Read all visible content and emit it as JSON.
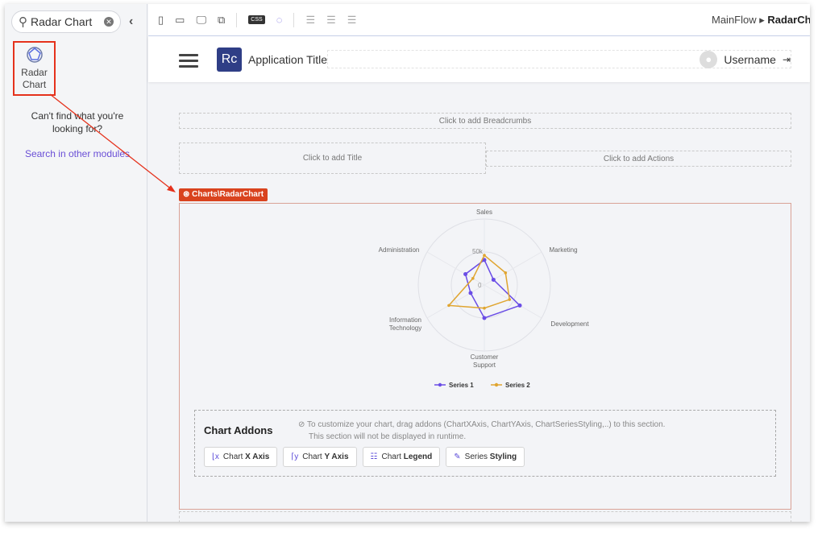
{
  "sidebar": {
    "search_value": "Radar Chart",
    "result": {
      "label_line1": "Radar",
      "label_line2": "Chart",
      "icon": "radar-chart-icon"
    },
    "cant_find": "Can't find what you're looking for?",
    "search_other": "Search in other modules"
  },
  "toolbar": {
    "icons": [
      "phone-icon",
      "tablet-icon",
      "desktop-icon",
      "window-icon",
      "css-icon",
      "theme-icon",
      "align-left-icon",
      "align-center-icon",
      "align-right-icon"
    ],
    "breadcrumb": [
      "MainFlow",
      "RadarChart"
    ]
  },
  "header": {
    "logo": "Rc",
    "app_title": "Application Title",
    "username": "Username"
  },
  "placeholders": {
    "breadcrumbs": "Click to add Breadcrumbs",
    "title": "Click to add Title",
    "actions": "Click to add Actions"
  },
  "widget_tag": "Charts\\RadarChart",
  "chart_data": {
    "type": "radar",
    "categories": [
      "Sales",
      "Marketing",
      "Development",
      "Customer Support",
      "Information Technology",
      "Administration"
    ],
    "radial_ticks": [
      "0",
      "50k"
    ],
    "range": [
      0,
      100000
    ],
    "series": [
      {
        "name": "Series 1",
        "color": "#6a4de6",
        "values": [
          38000,
          16000,
          62000,
          50000,
          24000,
          33000
        ]
      },
      {
        "name": "Series 2",
        "color": "#e0a530",
        "values": [
          45000,
          37000,
          44000,
          35000,
          62000,
          20000
        ]
      }
    ],
    "legend": "bottom"
  },
  "addons": {
    "title": "Chart Addons",
    "note_line1": "To customize your chart, drag addons (ChartXAxis, ChartYAxis, ChartSeriesStyling,..) to this section.",
    "note_line2": "This section will not be displayed in runtime.",
    "buttons": [
      {
        "pre": "Chart ",
        "bold": "X Axis"
      },
      {
        "pre": "Chart ",
        "bold": "Y Axis"
      },
      {
        "pre": "Chart ",
        "bold": "Legend"
      },
      {
        "pre": "Series ",
        "bold": "Styling"
      }
    ]
  },
  "colors": {
    "accent": "#6a4fd6",
    "highlight": "#e5321c",
    "logo_bg": "#2f3e86"
  }
}
